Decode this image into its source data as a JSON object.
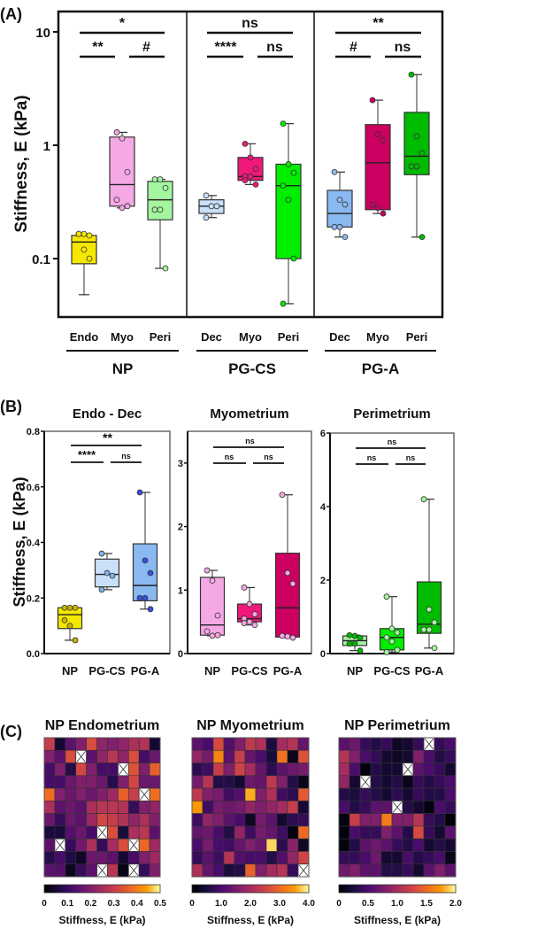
{
  "panel_labels": {
    "a": "(A)",
    "b": "(B)",
    "c": "(C)"
  },
  "chart_data": [
    {
      "type": "box",
      "id": "A",
      "title": "",
      "ylabel": "Stiffness, E (kPa)",
      "yscale": "log",
      "ylim": [
        0.03,
        15
      ],
      "yticks": [
        {
          "v": 10,
          "label": "10"
        },
        {
          "v": 1,
          "label": "1"
        },
        {
          "v": 0.1,
          "label": "0.1"
        }
      ],
      "groups": [
        {
          "name": "NP",
          "signif": {
            "top": "*",
            "left": "**",
            "right": "#"
          },
          "boxes": [
            {
              "label": "Endo",
              "color": "#f5e800",
              "min": 0.048,
              "q1": 0.09,
              "median": 0.14,
              "q3": 0.16,
              "max": 0.165,
              "points": [
                0.165,
                0.165,
                0.16,
                0.165,
                0.12,
                0.1
              ]
            },
            {
              "label": "Myo",
              "color": "#f4a8e4",
              "min": 0.28,
              "q1": 0.29,
              "median": 0.45,
              "q3": 1.18,
              "max": 1.3,
              "points": [
                1.3,
                1.15,
                0.58,
                0.33,
                0.28,
                0.29
              ]
            },
            {
              "label": "Peri",
              "color": "#a4f5a0",
              "min": 0.082,
              "q1": 0.22,
              "median": 0.33,
              "q3": 0.48,
              "max": 0.5,
              "points": [
                0.5,
                0.5,
                0.42,
                0.27,
                0.27,
                0.082
              ]
            }
          ]
        },
        {
          "name": "PG-CS",
          "signif": {
            "top": "ns",
            "left": "****",
            "right": "ns"
          },
          "boxes": [
            {
              "label": "Dec",
              "color": "#c9e0f8",
              "min": 0.23,
              "q1": 0.25,
              "median": 0.29,
              "q3": 0.33,
              "max": 0.36,
              "points": [
                0.36,
                0.29,
                0.29,
                0.23
              ]
            },
            {
              "label": "Myo",
              "color": "#f0187a",
              "min": 0.45,
              "q1": 0.49,
              "median": 0.53,
              "q3": 0.78,
              "max": 1.03,
              "points": [
                1.03,
                0.78,
                0.62,
                0.53,
                0.53,
                0.45,
                0.49
              ]
            },
            {
              "label": "Peri",
              "color": "#00ee00",
              "min": 0.04,
              "q1": 0.1,
              "median": 0.44,
              "q3": 0.68,
              "max": 1.55,
              "points": [
                1.55,
                0.68,
                0.57,
                0.44,
                0.33,
                0.1,
                0.04
              ]
            }
          ]
        },
        {
          "name": "PG-A",
          "signif": {
            "top": "**",
            "left": "#",
            "right": "ns"
          },
          "boxes": [
            {
              "label": "Dec",
              "color": "#8ab8f0",
              "min": 0.155,
              "q1": 0.19,
              "median": 0.25,
              "q3": 0.4,
              "max": 0.58,
              "points": [
                0.58,
                0.33,
                0.3,
                0.19,
                0.19,
                0.155
              ]
            },
            {
              "label": "Myo",
              "color": "#cc0060",
              "min": 0.25,
              "q1": 0.27,
              "median": 0.7,
              "q3": 1.52,
              "max": 2.5,
              "points": [
                2.5,
                1.25,
                1.1,
                0.3,
                0.28,
                0.25
              ]
            },
            {
              "label": "Peri",
              "color": "#00bb00",
              "min": 0.155,
              "q1": 0.55,
              "median": 0.8,
              "q3": 1.95,
              "max": 4.2,
              "points": [
                4.2,
                1.2,
                0.85,
                0.65,
                0.65,
                0.155
              ]
            }
          ]
        }
      ]
    },
    {
      "type": "box",
      "id": "B1",
      "title": "Endo - Dec",
      "ylabel": "Stiffness, E (kPa)",
      "ylim": [
        0,
        0.8
      ],
      "yticks": [
        {
          "v": 0,
          "label": "0.0"
        },
        {
          "v": 0.2,
          "label": "0.2"
        },
        {
          "v": 0.4,
          "label": "0.4"
        },
        {
          "v": 0.6,
          "label": "0.6"
        },
        {
          "v": 0.8,
          "label": "0.8"
        }
      ],
      "signif": {
        "top": "**",
        "left": "****",
        "right": "ns"
      },
      "boxes": [
        {
          "label": "NP",
          "color": "#f5e800",
          "point_color": "#c8b400",
          "min": 0.048,
          "q1": 0.09,
          "median": 0.14,
          "q3": 0.165,
          "max": 0.165,
          "points": [
            0.165,
            0.165,
            0.165,
            0.12,
            0.1,
            0.048
          ]
        },
        {
          "label": "PG-CS",
          "color": "#c9e0f8",
          "point_color": "#7fb0e8",
          "min": 0.23,
          "q1": 0.24,
          "median": 0.285,
          "q3": 0.34,
          "max": 0.36,
          "points": [
            0.36,
            0.29,
            0.28,
            0.23
          ]
        },
        {
          "label": "PG-A",
          "color": "#8ab8f0",
          "point_color": "#3a4ee0",
          "min": 0.16,
          "q1": 0.19,
          "median": 0.245,
          "q3": 0.395,
          "max": 0.58,
          "points": [
            0.58,
            0.335,
            0.29,
            0.2,
            0.2,
            0.16
          ]
        }
      ]
    },
    {
      "type": "box",
      "id": "B2",
      "title": "Myometrium",
      "ylim": [
        0,
        3.5
      ],
      "yticks": [
        {
          "v": 0,
          "label": "0"
        },
        {
          "v": 1,
          "label": "1"
        },
        {
          "v": 2,
          "label": "2"
        },
        {
          "v": 3,
          "label": "3"
        }
      ],
      "signif": {
        "top": "ns",
        "left": "ns",
        "right": "ns"
      },
      "boxes": [
        {
          "label": "NP",
          "color": "#f4a8e4",
          "point_color": "#f4a8e4",
          "min": 0.28,
          "q1": 0.29,
          "median": 0.45,
          "q3": 1.2,
          "max": 1.31,
          "points": [
            1.31,
            1.15,
            0.6,
            0.35,
            0.28,
            0.29
          ]
        },
        {
          "label": "PG-CS",
          "color": "#f0187a",
          "point_color": "#f4a8e4",
          "min": 0.45,
          "q1": 0.5,
          "median": 0.55,
          "q3": 0.78,
          "max": 1.04,
          "points": [
            1.04,
            0.78,
            0.62,
            0.55,
            0.5,
            0.45,
            0.48
          ]
        },
        {
          "label": "PG-A",
          "color": "#cc0060",
          "point_color": "#f4a8e4",
          "min": 0.25,
          "q1": 0.26,
          "median": 0.72,
          "q3": 1.58,
          "max": 2.5,
          "points": [
            2.5,
            1.27,
            1.1,
            0.28,
            0.27,
            0.25
          ]
        }
      ]
    },
    {
      "type": "box",
      "id": "B3",
      "title": "Perimetrium",
      "ylim": [
        0,
        6
      ],
      "yticks": [
        {
          "v": 0,
          "label": "0"
        },
        {
          "v": 2,
          "label": "2"
        },
        {
          "v": 4,
          "label": "4"
        },
        {
          "v": 6,
          "label": "6"
        }
      ],
      "signif": {
        "top": "ns",
        "left": "ns",
        "right": "ns"
      },
      "boxes": [
        {
          "label": "NP",
          "color": "#a4f5a0",
          "point_color": "#00b800",
          "min": 0.08,
          "q1": 0.22,
          "median": 0.35,
          "q3": 0.48,
          "max": 0.5,
          "points": [
            0.5,
            0.48,
            0.43,
            0.27,
            0.27,
            0.08
          ]
        },
        {
          "label": "PG-CS",
          "color": "#00ee00",
          "point_color": "#a4f5a0",
          "min": 0.04,
          "q1": 0.1,
          "median": 0.44,
          "q3": 0.68,
          "max": 1.55,
          "points": [
            1.55,
            0.68,
            0.57,
            0.44,
            0.33,
            0.1,
            0.04
          ]
        },
        {
          "label": "PG-A",
          "color": "#00bb00",
          "point_color": "#a4f5a0",
          "min": 0.15,
          "q1": 0.55,
          "median": 0.8,
          "q3": 1.95,
          "max": 4.2,
          "points": [
            4.2,
            1.2,
            0.85,
            0.65,
            0.65,
            0.15
          ]
        }
      ]
    },
    {
      "type": "heatmap",
      "id": "C1",
      "title": "NP Endometrium",
      "colorbar_label": "Stiffness, E (kPa)",
      "range": [
        0,
        0.5
      ],
      "cbar_ticks": [
        "0",
        "0.1",
        "0.2",
        "0.3",
        "0.4",
        "0.5"
      ],
      "values": [
        [
          0.3,
          0.05,
          0.15,
          0.2,
          0.33,
          0.22,
          0.2,
          0.22,
          0.26,
          0.27,
          0.05
        ],
        [
          0.2,
          0.15,
          0.33,
          null,
          0.15,
          0.22,
          0.28,
          0.22,
          0.33,
          0.12,
          0.17
        ],
        [
          0.12,
          0.2,
          0.08,
          0.32,
          0.2,
          0.12,
          0.12,
          null,
          0.34,
          0.2,
          0.36
        ],
        [
          0.12,
          0.12,
          0.17,
          0.2,
          0.2,
          0.17,
          0.08,
          0.2,
          0.32,
          0.17,
          0.17
        ],
        [
          0.38,
          0.2,
          0.17,
          0.2,
          0.17,
          0.2,
          0.24,
          0.36,
          0.3,
          null,
          0.38
        ],
        [
          0.26,
          0.15,
          0.17,
          0.15,
          0.26,
          0.28,
          0.28,
          0.27,
          0.1,
          0.2,
          0.22
        ],
        [
          0.17,
          0.1,
          0.17,
          0.15,
          0.24,
          0.32,
          0.3,
          0.27,
          0.22,
          0.26,
          0.2
        ],
        [
          0.06,
          0.06,
          0.14,
          0.17,
          0.12,
          null,
          0.33,
          0.06,
          0.26,
          0.28,
          0.15
        ],
        [
          0.15,
          null,
          0.1,
          0.18,
          0.26,
          0.1,
          0.25,
          0.33,
          null,
          0.37,
          0.24
        ],
        [
          0.08,
          0.12,
          0.07,
          0.04,
          0.17,
          0.17,
          0.15,
          0.05,
          0.12,
          0.2,
          0.24
        ],
        [
          0.15,
          0.14,
          0.03,
          0.1,
          0.15,
          null,
          0.28,
          0.02,
          null,
          0.1,
          0.2
        ]
      ]
    },
    {
      "type": "heatmap",
      "id": "C2",
      "title": "NP Myometrium",
      "colorbar_label": "Stiffness, E (kPa)",
      "range": [
        0,
        4.0
      ],
      "cbar_ticks": [
        "0",
        "1.0",
        "2.0",
        "3.0",
        "4.0"
      ],
      "values": [
        [
          1.2,
          1.0,
          2.6,
          1.1,
          1.6,
          2.3,
          2.1,
          0.5,
          2.0,
          2.2,
          1.3
        ],
        [
          1.8,
          1.5,
          3.3,
          1.2,
          2.4,
          1.3,
          1.0,
          0.5,
          3.1,
          0.2,
          2.7
        ],
        [
          0.7,
          0.9,
          2.4,
          1.6,
          2.5,
          2.0,
          1.3,
          0.7,
          1.2,
          1.4,
          1.5
        ],
        [
          1.5,
          2.2,
          0.6,
          0.6,
          0.4,
          1.4,
          1.3,
          2.3,
          1.6,
          0.6,
          0.2
        ],
        [
          2.3,
          1.6,
          1.5,
          0.9,
          1.1,
          3.6,
          1.6,
          2.1,
          0.9,
          0.7,
          2.8
        ],
        [
          3.5,
          0.9,
          1.5,
          1.4,
          1.5,
          1.8,
          1.6,
          1.8,
          2.0,
          2.4,
          0.4
        ],
        [
          0.9,
          1.8,
          1.6,
          1.2,
          1.0,
          0.3,
          1.5,
          1.2,
          0.4,
          0.7,
          0.8
        ],
        [
          1.3,
          1.4,
          1.0,
          0.6,
          1.8,
          0.9,
          1.5,
          1.3,
          0.9,
          0.1,
          3.0
        ],
        [
          1.0,
          1.5,
          1.0,
          0.9,
          1.3,
          1.6,
          1.4,
          3.8,
          0.7,
          1.7,
          0.3
        ],
        [
          0.8,
          1.2,
          0.9,
          2.2,
          1.1,
          1.0,
          1.0,
          0.6,
          1.1,
          1.8,
          2.5
        ],
        [
          2.1,
          1.3,
          1.0,
          0.5,
          0.6,
          2.9,
          1.6,
          2.0,
          2.2,
          0.8,
          null
        ]
      ]
    },
    {
      "type": "heatmap",
      "id": "C3",
      "title": "NP Perimetrium",
      "colorbar_label": "Stiffness, E (kPa)",
      "range": [
        0,
        2.0
      ],
      "cbar_ticks": [
        "0",
        "0.5",
        "1.0",
        "1.5",
        "2.0"
      ],
      "values": [
        [
          0.6,
          0.7,
          0.4,
          0.3,
          0.4,
          0.15,
          0.2,
          0.4,
          null,
          0.4,
          0.5
        ],
        [
          1.1,
          0.8,
          0.5,
          0.4,
          0.2,
          0.15,
          0.2,
          0.8,
          0.5,
          0.3,
          0.4
        ],
        [
          1.0,
          0.5,
          0.05,
          0.3,
          0.2,
          0.2,
          null,
          0.6,
          0.5,
          0.4,
          0.2
        ],
        [
          0.9,
          0.2,
          null,
          0.3,
          0.2,
          0.3,
          0.1,
          0.4,
          0.3,
          0.4,
          0.5
        ],
        [
          0.3,
          0.25,
          0.4,
          0.3,
          0.2,
          0.35,
          0.2,
          0.4,
          0.3,
          0.3,
          0.5
        ],
        [
          0.5,
          0.3,
          0.4,
          0.6,
          0.6,
          null,
          0.3,
          0.2,
          0.05,
          0.5,
          0.4
        ],
        [
          0.05,
          1.2,
          0.8,
          0.8,
          1.6,
          0.8,
          0.8,
          1.1,
          0.4,
          0.3,
          0.02
        ],
        [
          0.05,
          0.5,
          0.4,
          0.4,
          0.8,
          0.6,
          0.3,
          1.3,
          0.4,
          0.2,
          0.6
        ],
        [
          0.05,
          0.3,
          0.6,
          0.7,
          0.6,
          0.4,
          0.3,
          0.5,
          0.2,
          0.3,
          0.2
        ],
        [
          0.4,
          0.4,
          0.5,
          0.7,
          0.2,
          0.2,
          0.5,
          0.3,
          0.4,
          0.5,
          0.1
        ],
        [
          0.7,
          0.8,
          0.6,
          0.6,
          0.3,
          0.3,
          0.4,
          0.2,
          0.6,
          0.8,
          0.6
        ]
      ]
    }
  ]
}
